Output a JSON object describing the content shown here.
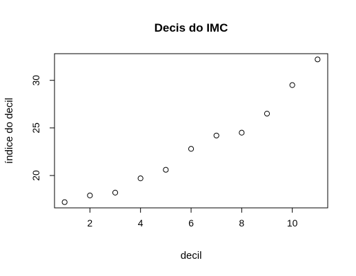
{
  "chart_data": {
    "type": "scatter",
    "title": "Decis do IMC",
    "xlabel": "decil",
    "ylabel": "índice do decil",
    "x": [
      1,
      2,
      3,
      4,
      5,
      6,
      7,
      8,
      9,
      10,
      11
    ],
    "y": [
      17.2,
      17.9,
      18.2,
      19.7,
      20.6,
      22.8,
      24.2,
      24.5,
      26.5,
      29.5,
      32.2
    ],
    "xlim": [
      0.6,
      11.4
    ],
    "ylim": [
      16.6,
      32.8
    ],
    "xticks": [
      2,
      4,
      6,
      8,
      10
    ],
    "yticks": [
      20,
      25,
      30
    ],
    "grid": false,
    "marker": "open-circle"
  }
}
